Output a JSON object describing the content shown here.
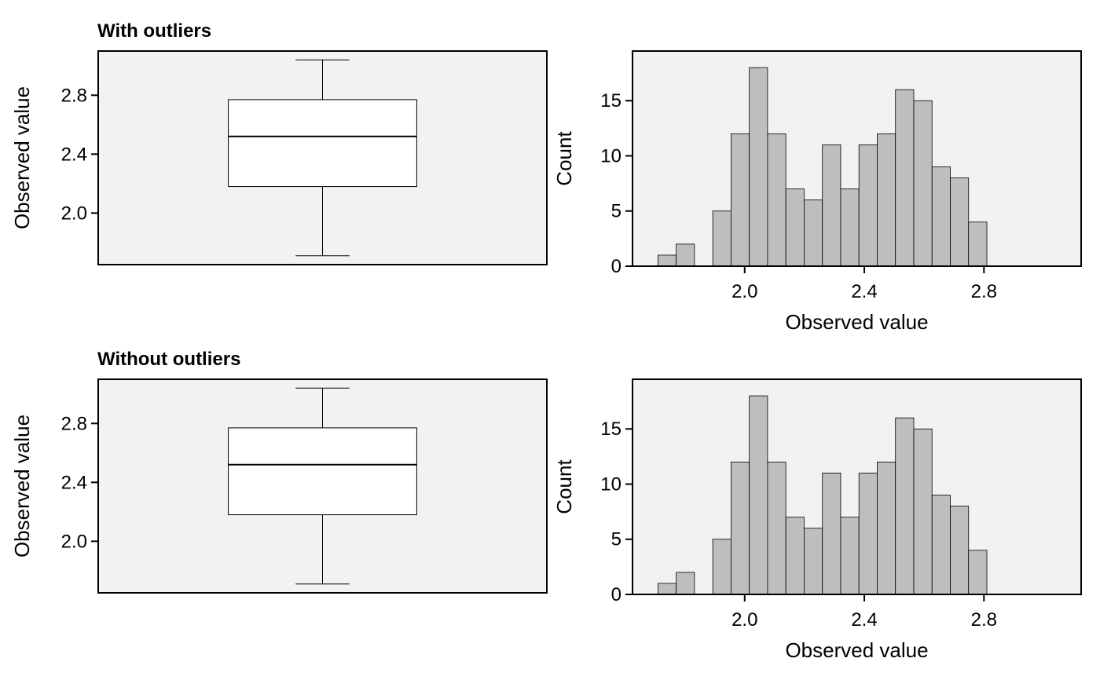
{
  "colors": {
    "panel_bg": "#f2f2f2",
    "bar_fill": "#bebebe",
    "box_fill": "#ffffff",
    "stroke": "#000000"
  },
  "chart_data": [
    {
      "type": "box",
      "title": "With outliers",
      "xlabel": "",
      "ylabel": "Observed value",
      "ylim": [
        1.65,
        3.1
      ],
      "yticks": [
        "2.0",
        "2.4",
        "2.8"
      ],
      "ytick_values": [
        2.0,
        2.4,
        2.8
      ],
      "stats": {
        "whisker_low": 1.71,
        "q1": 2.18,
        "median": 2.52,
        "q3": 2.77,
        "whisker_high": 3.04
      }
    },
    {
      "type": "bar",
      "subtype": "histogram",
      "title": "",
      "xlabel": "Observed value",
      "ylabel": "Count",
      "xlim": [
        1.625,
        3.125
      ],
      "ylim": [
        0,
        19.5
      ],
      "xticks": [
        "2.0",
        "2.4",
        "2.8"
      ],
      "xtick_values": [
        2.0,
        2.4,
        2.8
      ],
      "yticks": [
        "0",
        "5",
        "10",
        "15"
      ],
      "ytick_values": [
        0,
        5,
        10,
        15
      ],
      "bin_start": 1.71,
      "bin_width": 0.0611,
      "values": [
        1,
        2,
        0,
        5,
        12,
        18,
        12,
        7,
        6,
        11,
        7,
        11,
        12,
        16,
        15,
        9,
        8,
        4
      ]
    },
    {
      "type": "box",
      "title": "Without outliers",
      "xlabel": "",
      "ylabel": "Observed value",
      "ylim": [
        1.65,
        3.1
      ],
      "yticks": [
        "2.0",
        "2.4",
        "2.8"
      ],
      "ytick_values": [
        2.0,
        2.4,
        2.8
      ],
      "stats": {
        "whisker_low": 1.71,
        "q1": 2.18,
        "median": 2.52,
        "q3": 2.77,
        "whisker_high": 3.04
      }
    },
    {
      "type": "bar",
      "subtype": "histogram",
      "title": "",
      "xlabel": "Observed value",
      "ylabel": "Count",
      "xlim": [
        1.625,
        3.125
      ],
      "ylim": [
        0,
        19.5
      ],
      "xticks": [
        "2.0",
        "2.4",
        "2.8"
      ],
      "xtick_values": [
        2.0,
        2.4,
        2.8
      ],
      "yticks": [
        "0",
        "5",
        "10",
        "15"
      ],
      "ytick_values": [
        0,
        5,
        10,
        15
      ],
      "bin_start": 1.71,
      "bin_width": 0.0611,
      "values": [
        1,
        2,
        0,
        5,
        12,
        18,
        12,
        7,
        6,
        11,
        7,
        11,
        12,
        16,
        15,
        9,
        8,
        4
      ]
    }
  ]
}
